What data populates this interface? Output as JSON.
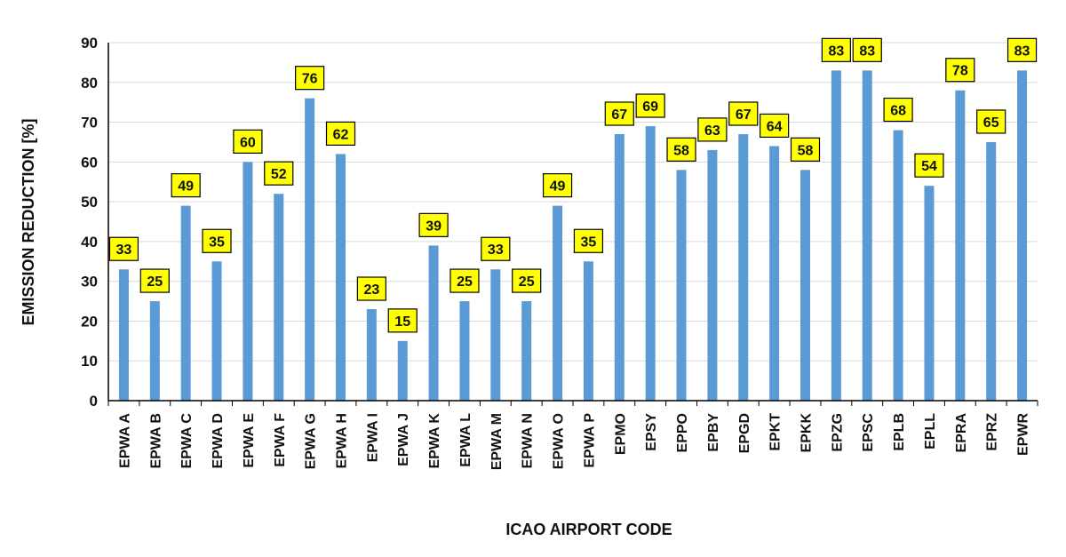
{
  "chart_data": {
    "type": "bar",
    "title": "",
    "xlabel": "ICAO AIRPORT CODE",
    "ylabel": "EMISSION REDUCTION [%]",
    "ylim": [
      0,
      90
    ],
    "yticks": [
      0,
      10,
      20,
      30,
      40,
      50,
      60,
      70,
      80,
      90
    ],
    "grid": true,
    "legend": "none",
    "categories": [
      "EPWA A",
      "EPWA B",
      "EPWA C",
      "EPWA D",
      "EPWA E",
      "EPWA F",
      "EPWA G",
      "EPWA H",
      "EPWA I",
      "EPWA J",
      "EPWA K",
      "EPWA L",
      "EPWA M",
      "EPWA N",
      "EPWA O",
      "EPWA P",
      "EPMO",
      "EPSY",
      "EPPO",
      "EPBY",
      "EPGD",
      "EPKT",
      "EPKK",
      "EPZG",
      "EPSC",
      "EPLB",
      "EPLL",
      "EPRA",
      "EPRZ",
      "EPWR"
    ],
    "values": [
      33,
      25,
      49,
      35,
      60,
      52,
      76,
      62,
      23,
      15,
      39,
      25,
      33,
      25,
      49,
      35,
      67,
      69,
      58,
      63,
      67,
      64,
      58,
      83,
      83,
      68,
      54,
      78,
      65,
      83
    ],
    "labels": [
      "33",
      "25",
      "49",
      "35",
      "60",
      "52",
      "76",
      "62",
      "23",
      "15",
      "39",
      "25",
      "33",
      "25",
      "49",
      "35",
      "67",
      "69",
      "58",
      "63",
      "67",
      "64",
      "58",
      "83",
      "83",
      "68",
      "54",
      "78",
      "65",
      "83"
    ],
    "colors": {
      "bar": "#5B9BD5",
      "label_fill": "#FFFF00",
      "label_border": "#000000",
      "grid": "#D9D9D9",
      "axis": "#000000"
    }
  }
}
